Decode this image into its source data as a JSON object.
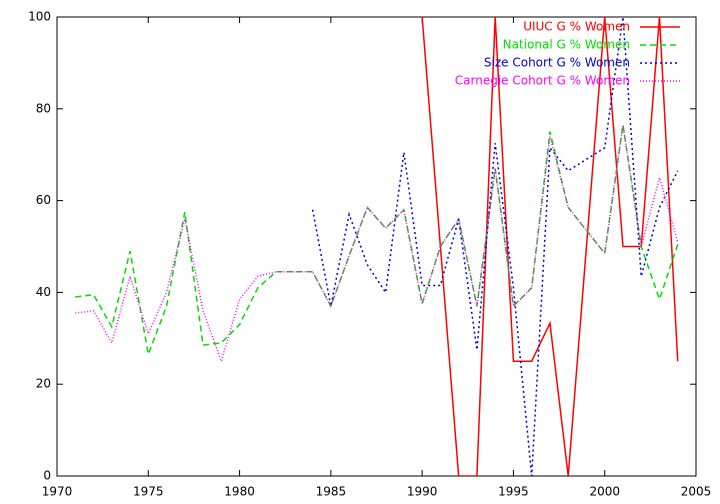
{
  "chart_data": {
    "type": "line",
    "x": [
      1971,
      1972,
      1973,
      1974,
      1975,
      1976,
      1977,
      1978,
      1979,
      1980,
      1981,
      1982,
      1983,
      1984,
      1985,
      1986,
      1987,
      1988,
      1989,
      1990,
      1991,
      1992,
      1993,
      1994,
      1995,
      1996,
      1997,
      1998,
      1999,
      2000,
      2001,
      2002,
      2003,
      2004
    ],
    "series": [
      {
        "name": "UIUC G % Women",
        "color": "#ff0000",
        "dash": "none",
        "values": [
          null,
          null,
          null,
          null,
          null,
          null,
          null,
          null,
          null,
          null,
          null,
          null,
          null,
          null,
          null,
          null,
          null,
          null,
          null,
          100,
          50,
          0,
          0,
          100,
          25,
          25,
          33.3,
          0,
          50,
          100,
          50,
          50,
          100,
          25
        ]
      },
      {
        "name": "National G % Women",
        "color": "#00dd00",
        "dash": "6,4",
        "values": [
          39,
          39.5,
          32.5,
          49,
          26.5,
          37,
          57.5,
          28.5,
          29,
          33,
          41,
          44.5,
          44.5,
          44.5,
          37,
          48,
          58.5,
          54,
          58,
          37.5,
          50,
          56,
          37,
          67,
          37,
          41,
          75,
          58.5,
          53.5,
          48.5,
          76.5,
          50,
          38.5,
          50.5
        ]
      },
      {
        "name": "Size Cohort G % Women",
        "color": "#0000cc",
        "dash": "2,3",
        "values": [
          null,
          null,
          null,
          null,
          null,
          null,
          null,
          null,
          null,
          null,
          null,
          null,
          null,
          58,
          37,
          57,
          46,
          40,
          70.5,
          41.5,
          41.5,
          56,
          27.5,
          72.5,
          41,
          0,
          71.5,
          66.5,
          69,
          71.5,
          100,
          43.5,
          58.5,
          66.5
        ]
      },
      {
        "name": "Carnegie Cohort G % Women",
        "color": "#ff00ff",
        "dash": "1,2",
        "values": [
          35.5,
          36,
          29,
          43.5,
          31,
          40,
          56,
          36,
          25,
          38.5,
          43.5,
          44.5,
          44.5,
          44.5,
          37,
          48,
          58.5,
          54,
          58,
          37.5,
          50,
          56,
          37,
          67,
          37,
          41,
          74,
          58.5,
          53.5,
          48.5,
          76.5,
          50,
          65,
          51
        ]
      }
    ],
    "xlim": [
      1970,
      2005
    ],
    "xticks": [
      1970,
      1975,
      1980,
      1985,
      1990,
      1995,
      2000,
      2005
    ],
    "ylim": [
      0,
      100
    ],
    "yticks": [
      0,
      20,
      40,
      60,
      80,
      100
    ],
    "legend": "top-right",
    "grid": false
  }
}
